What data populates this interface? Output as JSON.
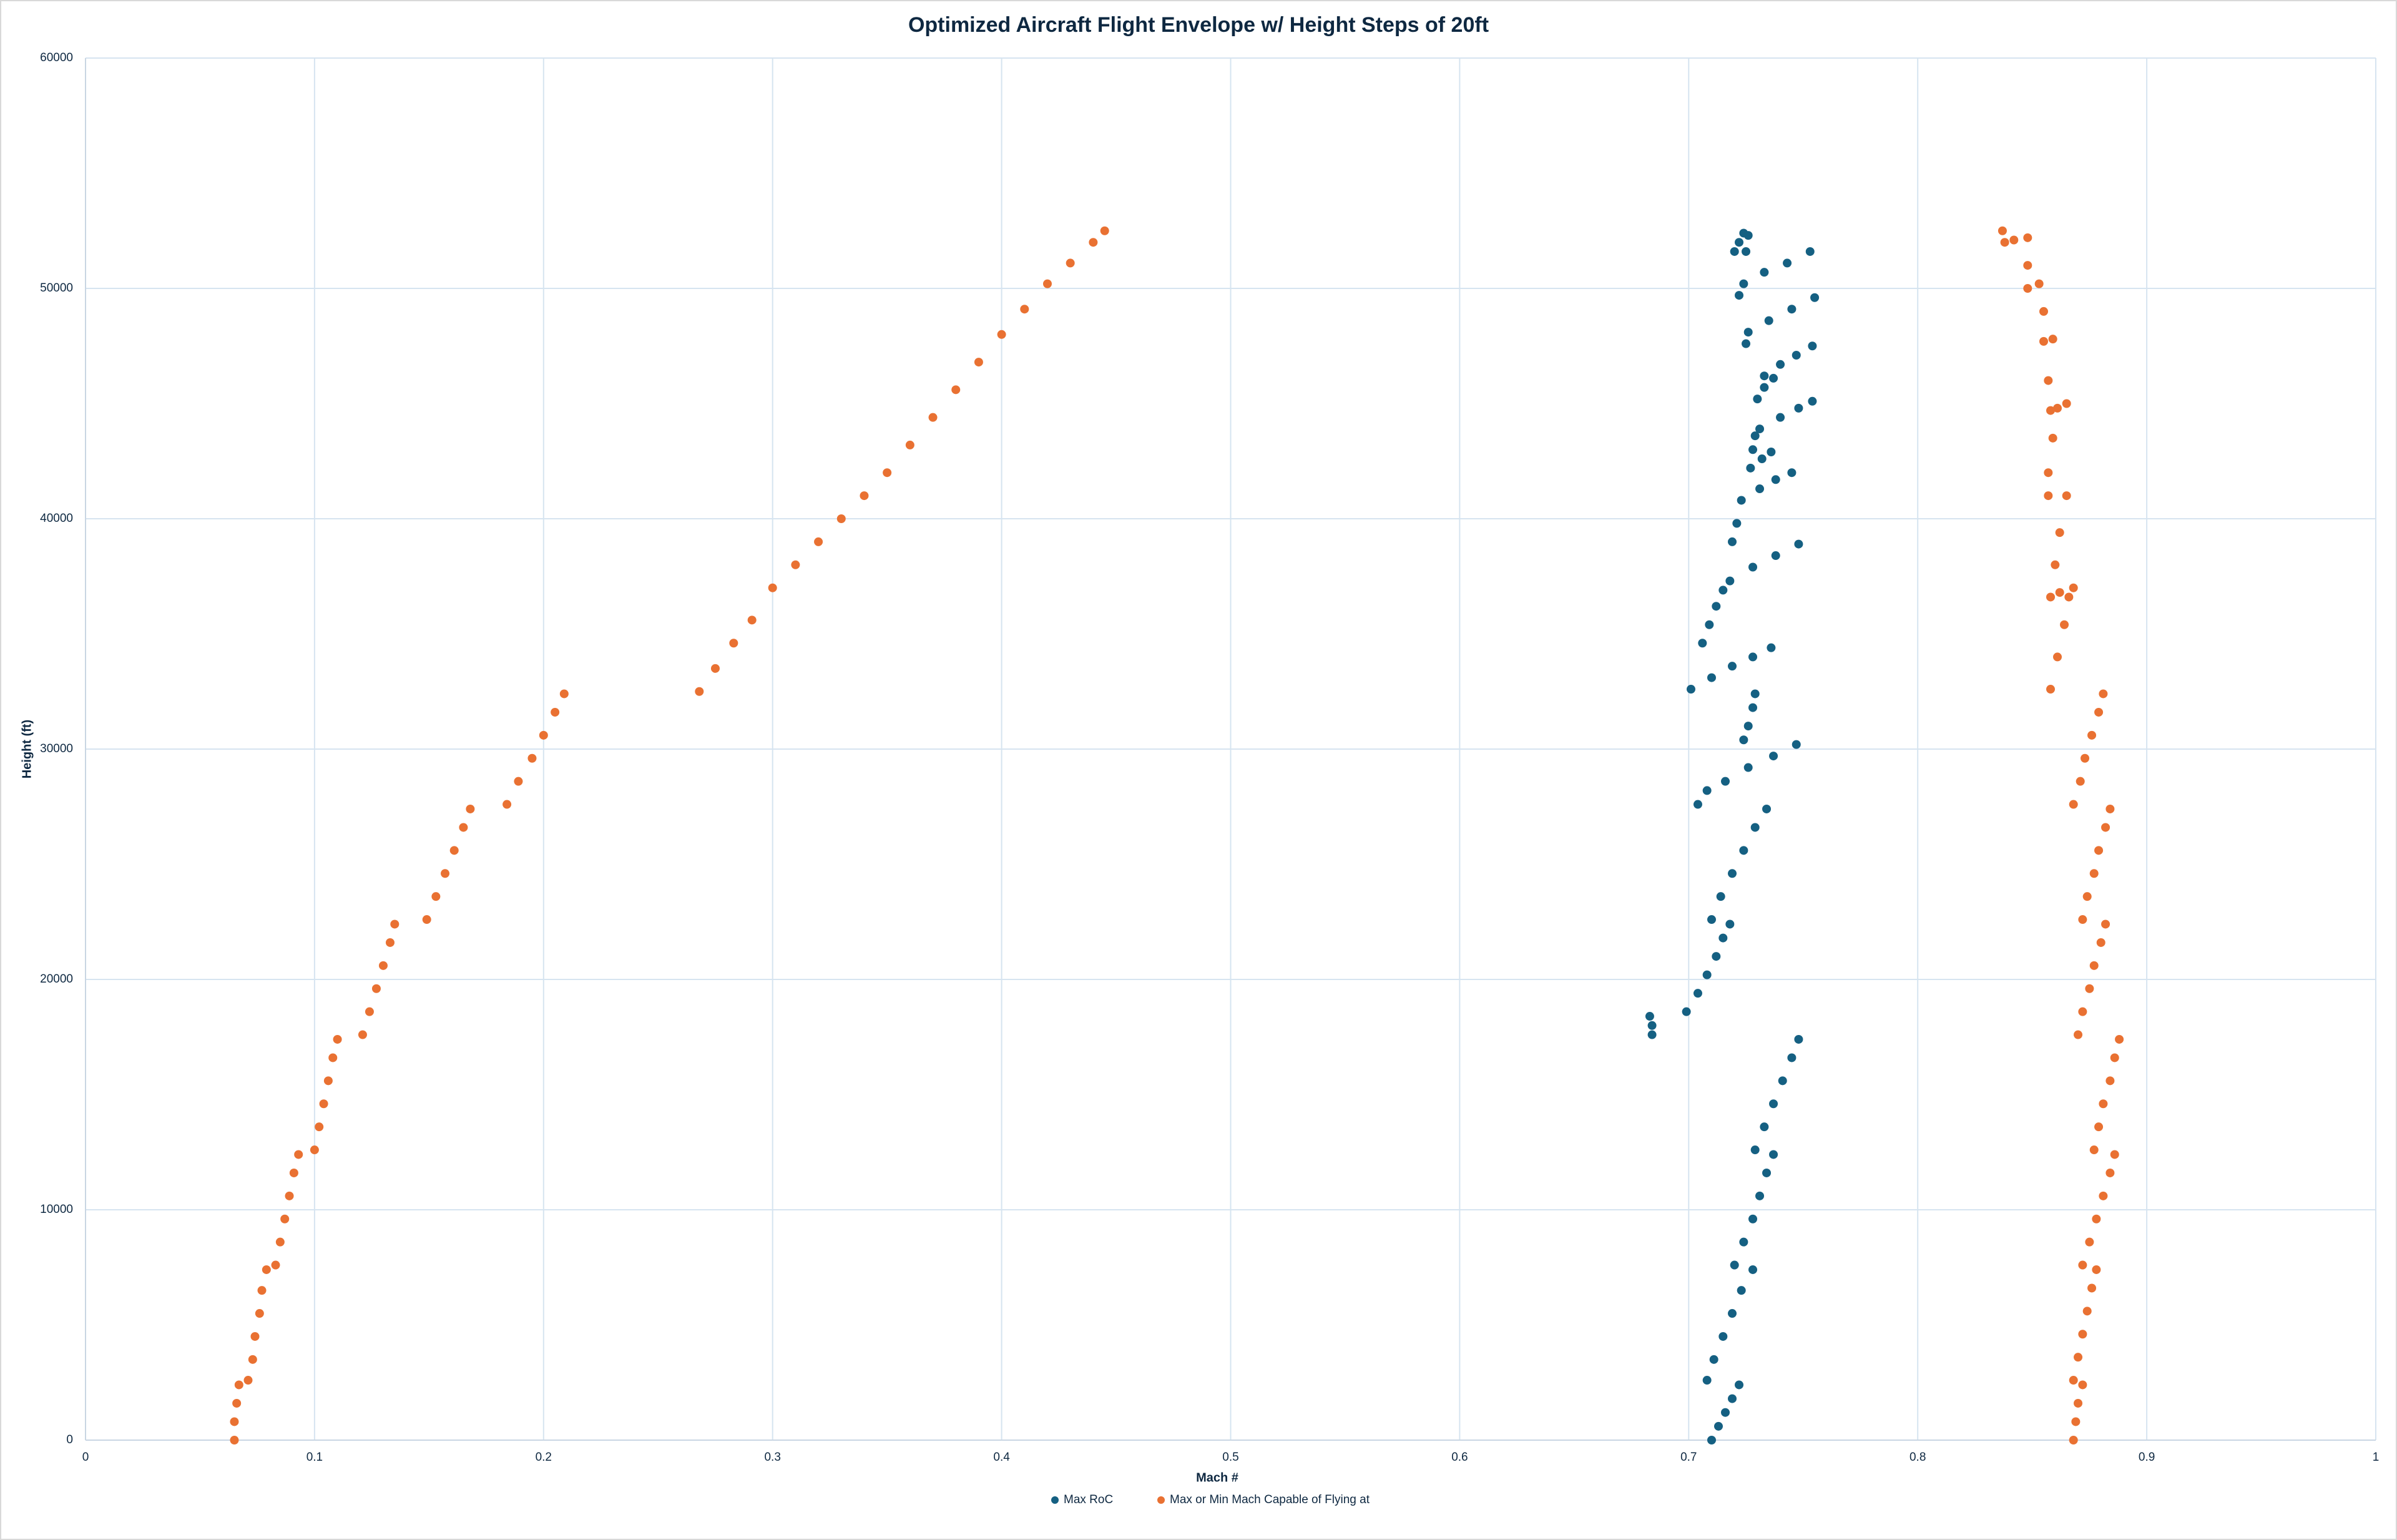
{
  "chart_data": {
    "type": "scatter",
    "title": "Optimized Aircraft Flight Envelope w/ Height Steps of 20ft",
    "x_label": "Mach #",
    "y_label": "Height (ft)",
    "xlim": [
      0,
      1
    ],
    "xticks": [
      0,
      0.1,
      0.2,
      0.3,
      0.4,
      0.5,
      0.6,
      0.7,
      0.8,
      0.9,
      1
    ],
    "ylim": [
      0,
      60000
    ],
    "yticks": [
      0,
      10000,
      20000,
      30000,
      40000,
      50000,
      60000
    ],
    "grid": true,
    "legend": "bottom",
    "series": [
      {
        "name": "Max RoC",
        "color": "#156082",
        "x": [
          0.71,
          0.713,
          0.716,
          0.719,
          0.722,
          0.708,
          0.711,
          0.715,
          0.719,
          0.723,
          0.728,
          0.72,
          0.724,
          0.728,
          0.731,
          0.734,
          0.737,
          0.729,
          0.733,
          0.737,
          0.741,
          0.745,
          0.748,
          0.684,
          0.684,
          0.683,
          0.699,
          0.704,
          0.708,
          0.712,
          0.715,
          0.718,
          0.71,
          0.714,
          0.719,
          0.724,
          0.729,
          0.734,
          0.704,
          0.708,
          0.716,
          0.726,
          0.737,
          0.747,
          0.724,
          0.726,
          0.728,
          0.729,
          0.701,
          0.71,
          0.719,
          0.728,
          0.736,
          0.706,
          0.709,
          0.712,
          0.715,
          0.718,
          0.728,
          0.738,
          0.748,
          0.719,
          0.721,
          0.723,
          0.731,
          0.738,
          0.745,
          0.727,
          0.732,
          0.736,
          0.728,
          0.729,
          0.731,
          0.74,
          0.748,
          0.754,
          0.73,
          0.733,
          0.737,
          0.733,
          0.74,
          0.747,
          0.754,
          0.725,
          0.726,
          0.735,
          0.745,
          0.755,
          0.722,
          0.724,
          0.733,
          0.743,
          0.753,
          0.72,
          0.722,
          0.724,
          0.726,
          0.725
        ],
        "values": [
          0,
          600,
          1200,
          1800,
          2400,
          2600,
          3500,
          4500,
          5500,
          6500,
          7400,
          7600,
          8600,
          9600,
          10600,
          11600,
          12400,
          12600,
          13600,
          14600,
          15600,
          16600,
          17400,
          17600,
          18000,
          18400,
          18600,
          19400,
          20200,
          21000,
          21800,
          22400,
          22600,
          23600,
          24600,
          25600,
          26600,
          27400,
          27600,
          28200,
          28600,
          29200,
          29700,
          30200,
          30400,
          31000,
          31800,
          32400,
          32600,
          33100,
          33600,
          34000,
          34400,
          34600,
          35400,
          36200,
          36900,
          37300,
          37900,
          38400,
          38900,
          39000,
          39800,
          40800,
          41300,
          41700,
          42000,
          42200,
          42600,
          42900,
          43000,
          43600,
          43900,
          44400,
          44800,
          45100,
          45200,
          45700,
          46100,
          46200,
          46700,
          47100,
          47500,
          47600,
          48100,
          48600,
          49100,
          49600,
          49700,
          50200,
          50700,
          51100,
          51600,
          51600,
          52000,
          52400,
          52300,
          51600
        ]
      },
      {
        "name": "Max or Min Mach Capable of Flying at",
        "color": "#e97132",
        "x": [
          0.065,
          0.065,
          0.066,
          0.067,
          0.071,
          0.073,
          0.074,
          0.076,
          0.077,
          0.079,
          0.083,
          0.085,
          0.087,
          0.089,
          0.091,
          0.093,
          0.1,
          0.102,
          0.104,
          0.106,
          0.108,
          0.11,
          0.121,
          0.124,
          0.127,
          0.13,
          0.133,
          0.135,
          0.149,
          0.153,
          0.157,
          0.161,
          0.165,
          0.168,
          0.184,
          0.189,
          0.195,
          0.2,
          0.205,
          0.209,
          0.268,
          0.275,
          0.283,
          0.291,
          0.3,
          0.31,
          0.32,
          0.33,
          0.34,
          0.35,
          0.36,
          0.37,
          0.38,
          0.39,
          0.4,
          0.41,
          0.42,
          0.43,
          0.44,
          0.445,
          0.868,
          0.869,
          0.87,
          0.872,
          0.868,
          0.87,
          0.872,
          0.874,
          0.876,
          0.878,
          0.872,
          0.875,
          0.878,
          0.881,
          0.884,
          0.886,
          0.877,
          0.879,
          0.881,
          0.884,
          0.886,
          0.888,
          0.87,
          0.872,
          0.875,
          0.877,
          0.88,
          0.882,
          0.872,
          0.874,
          0.877,
          0.879,
          0.882,
          0.884,
          0.868,
          0.871,
          0.873,
          0.876,
          0.879,
          0.881,
          0.858,
          0.861,
          0.864,
          0.866,
          0.868,
          0.862,
          0.858,
          0.86,
          0.862,
          0.865,
          0.857,
          0.857,
          0.859,
          0.861,
          0.865,
          0.858,
          0.857,
          0.859,
          0.855,
          0.855,
          0.853,
          0.848,
          0.848,
          0.848,
          0.842,
          0.838,
          0.837
        ],
        "values": [
          0,
          800,
          1600,
          2400,
          2600,
          3500,
          4500,
          5500,
          6500,
          7400,
          7600,
          8600,
          9600,
          10600,
          11600,
          12400,
          12600,
          13600,
          14600,
          15600,
          16600,
          17400,
          17600,
          18600,
          19600,
          20600,
          21600,
          22400,
          22600,
          23600,
          24600,
          25600,
          26600,
          27400,
          27600,
          28600,
          29600,
          30600,
          31600,
          32400,
          32500,
          33500,
          34600,
          35600,
          37000,
          38000,
          39000,
          40000,
          41000,
          42000,
          43200,
          44400,
          45600,
          46800,
          48000,
          49100,
          50200,
          51100,
          52000,
          52500,
          0,
          800,
          1600,
          2400,
          2600,
          3600,
          4600,
          5600,
          6600,
          7400,
          7600,
          8600,
          9600,
          10600,
          11600,
          12400,
          12600,
          13600,
          14600,
          15600,
          16600,
          17400,
          17600,
          18600,
          19600,
          20600,
          21600,
          22400,
          22600,
          23600,
          24600,
          25600,
          26600,
          27400,
          27600,
          28600,
          29600,
          30600,
          31600,
          32400,
          32600,
          34000,
          35400,
          36600,
          37000,
          36800,
          36600,
          38000,
          39400,
          41000,
          41000,
          42000,
          43500,
          44800,
          45000,
          44700,
          46000,
          47800,
          47700,
          49000,
          50200,
          50000,
          51000,
          52200,
          52100,
          52000,
          52500
        ]
      }
    ]
  }
}
